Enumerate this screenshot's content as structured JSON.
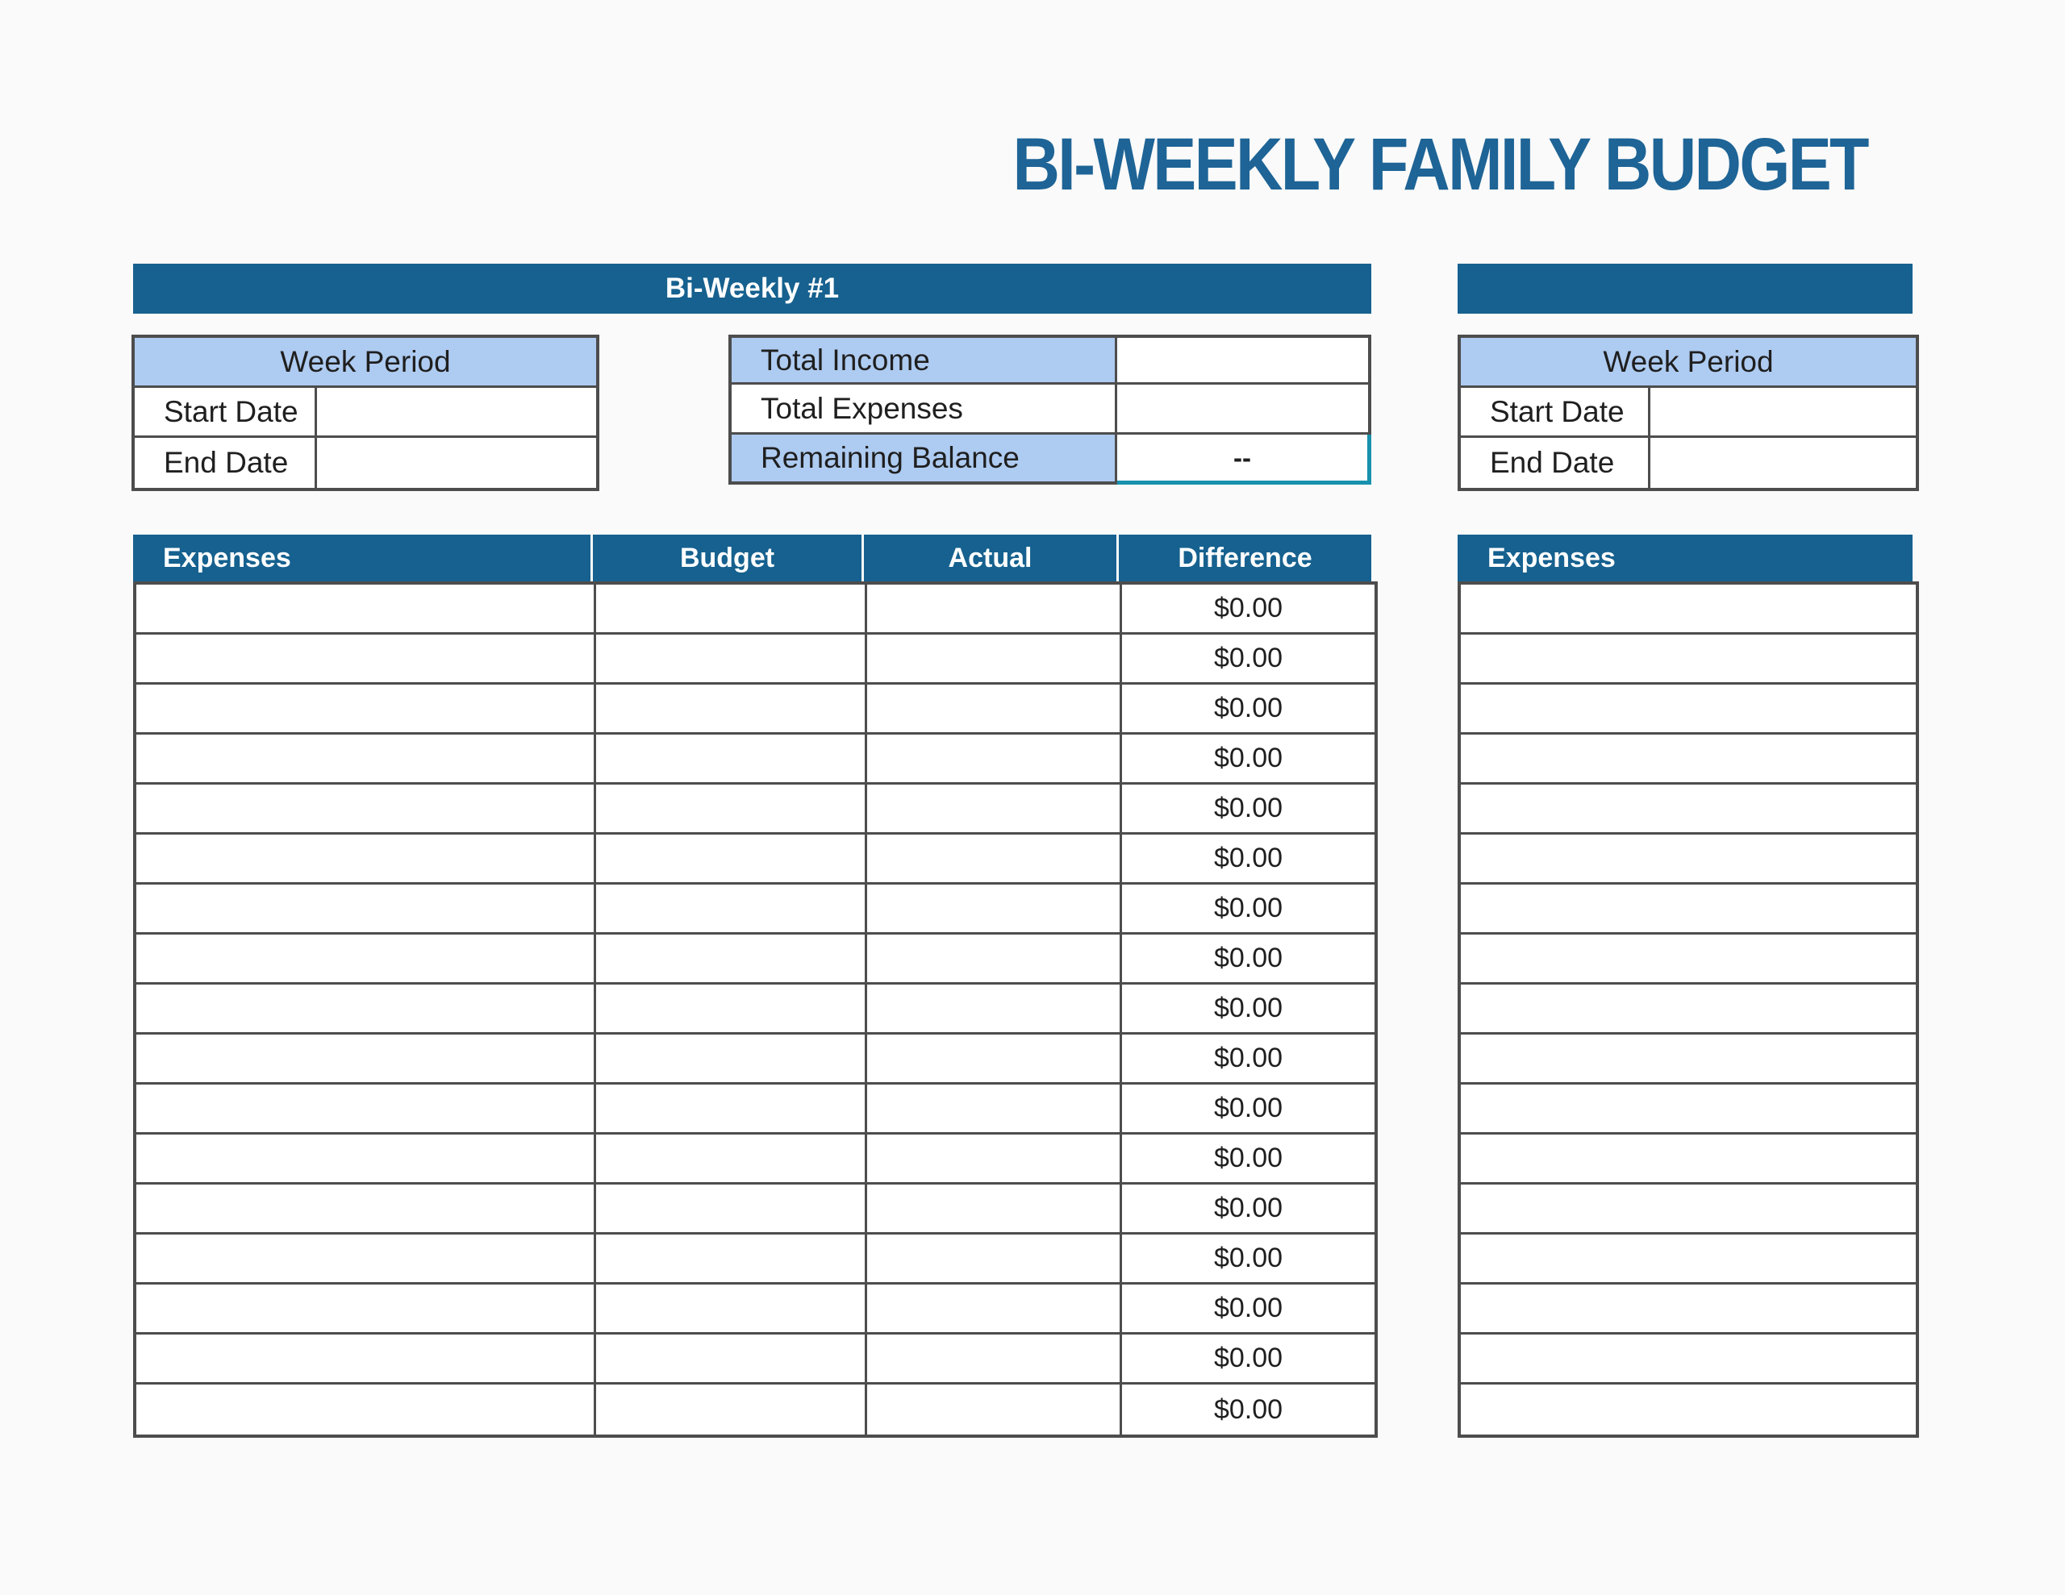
{
  "colors": {
    "header_blue": "#16618f",
    "title_blue": "#1e6496",
    "light_blue": "#aecbf1",
    "border_gray": "#4d4d4d",
    "selection_teal": "#1791ad",
    "page_bg": "#fafafa"
  },
  "page": {
    "title": "BI-WEEKLY FAMILY BUDGET"
  },
  "section1": {
    "header_label": "Bi-Weekly #1",
    "week_period": {
      "title": "Week Period",
      "rows": [
        {
          "label": "Start Date",
          "value": ""
        },
        {
          "label": "End Date",
          "value": ""
        }
      ]
    },
    "summary": {
      "rows": [
        {
          "label": "Total Income",
          "value": ""
        },
        {
          "label": "Total Expenses",
          "value": ""
        },
        {
          "label": "Remaining Balance",
          "value": "--"
        }
      ]
    },
    "expenses": {
      "headers": [
        "Expenses",
        "Budget",
        "Actual",
        "Difference"
      ],
      "rows": [
        {
          "expense": "",
          "budget": "",
          "actual": "",
          "difference": "$0.00"
        },
        {
          "expense": "",
          "budget": "",
          "actual": "",
          "difference": "$0.00"
        },
        {
          "expense": "",
          "budget": "",
          "actual": "",
          "difference": "$0.00"
        },
        {
          "expense": "",
          "budget": "",
          "actual": "",
          "difference": "$0.00"
        },
        {
          "expense": "",
          "budget": "",
          "actual": "",
          "difference": "$0.00"
        },
        {
          "expense": "",
          "budget": "",
          "actual": "",
          "difference": "$0.00"
        },
        {
          "expense": "",
          "budget": "",
          "actual": "",
          "difference": "$0.00"
        },
        {
          "expense": "",
          "budget": "",
          "actual": "",
          "difference": "$0.00"
        },
        {
          "expense": "",
          "budget": "",
          "actual": "",
          "difference": "$0.00"
        },
        {
          "expense": "",
          "budget": "",
          "actual": "",
          "difference": "$0.00"
        },
        {
          "expense": "",
          "budget": "",
          "actual": "",
          "difference": "$0.00"
        },
        {
          "expense": "",
          "budget": "",
          "actual": "",
          "difference": "$0.00"
        },
        {
          "expense": "",
          "budget": "",
          "actual": "",
          "difference": "$0.00"
        },
        {
          "expense": "",
          "budget": "",
          "actual": "",
          "difference": "$0.00"
        },
        {
          "expense": "",
          "budget": "",
          "actual": "",
          "difference": "$0.00"
        },
        {
          "expense": "",
          "budget": "",
          "actual": "",
          "difference": "$0.00"
        },
        {
          "expense": "",
          "budget": "",
          "actual": "",
          "difference": "$0.00"
        }
      ]
    }
  },
  "section2": {
    "header_label": "",
    "week_period": {
      "title": "Week Period",
      "rows": [
        {
          "label": "Start Date",
          "value": ""
        },
        {
          "label": "End Date",
          "value": ""
        }
      ]
    },
    "expenses": {
      "headers": [
        "Expenses"
      ],
      "rows": [
        "",
        "",
        "",
        "",
        "",
        "",
        "",
        "",
        "",
        "",
        "",
        "",
        "",
        "",
        "",
        "",
        ""
      ]
    }
  }
}
